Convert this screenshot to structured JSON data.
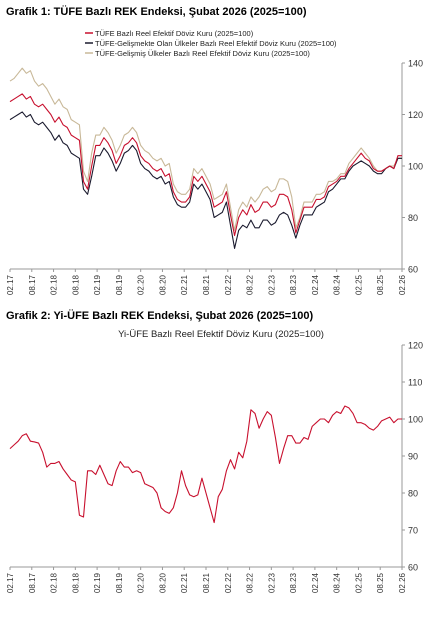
{
  "chart_data": [
    {
      "type": "line",
      "title": "Grafik 1: TÜFE Bazlı REK Endeksi, Şubat 2026 (2025=100)",
      "xlabel": "",
      "ylabel": "",
      "ylim": [
        60,
        140
      ],
      "y_ticks": [
        60,
        80,
        100,
        120,
        140
      ],
      "y_axis_side": "right",
      "grid": false,
      "legend_position": "top",
      "x_tick_labels": [
        "02.17",
        "08.17",
        "02.18",
        "08.18",
        "02.19",
        "08.19",
        "02.20",
        "08.20",
        "02.21",
        "08.21",
        "02.22",
        "08.22",
        "02.23",
        "08.23",
        "02.24",
        "08.24",
        "02.25",
        "08.25",
        "02.26"
      ],
      "series": [
        {
          "name": "TÜFE  Bazlı Reel Efektif Döviz Kuru (2025=100)",
          "color": "#c8102e",
          "values": [
            125,
            126,
            127,
            128,
            126,
            127,
            124,
            123,
            124,
            122,
            120,
            117,
            119,
            116,
            115,
            112,
            111,
            110,
            94,
            91,
            100,
            108,
            108,
            111,
            109,
            106,
            101,
            104,
            108,
            109,
            111,
            109,
            104,
            102,
            101,
            99,
            98,
            99,
            96,
            97,
            90,
            87,
            86,
            86,
            88,
            96,
            94,
            96,
            93,
            90,
            84,
            85,
            86,
            90,
            81,
            73,
            80,
            83,
            81,
            85,
            82,
            83,
            86,
            86,
            84,
            85,
            89,
            89,
            88,
            83,
            74,
            79,
            84,
            84,
            84,
            87,
            87,
            88,
            92,
            93,
            94,
            96,
            96,
            99,
            101,
            103,
            105,
            103,
            102,
            99,
            98,
            98,
            99,
            100,
            99,
            104,
            104
          ]
        },
        {
          "name": "TÜFE-Gelişmekte Olan Ülkeler Bazlı Reel Efektif Döviz Kuru (2025=100)",
          "color": "#1a1a2e",
          "values": [
            118,
            119,
            120,
            121,
            119,
            120,
            117,
            116,
            117,
            115,
            113,
            110,
            112,
            109,
            108,
            105,
            104,
            103,
            91,
            89,
            96,
            104,
            104,
            107,
            105,
            102,
            98,
            101,
            105,
            106,
            108,
            106,
            101,
            99,
            98,
            96,
            95,
            96,
            93,
            94,
            88,
            85,
            84,
            84,
            86,
            93,
            91,
            93,
            90,
            87,
            80,
            81,
            82,
            86,
            77,
            68,
            75,
            77,
            76,
            79,
            76,
            76,
            79,
            79,
            77,
            78,
            81,
            82,
            81,
            77,
            72,
            77,
            81,
            81,
            81,
            84,
            85,
            86,
            90,
            91,
            93,
            95,
            95,
            98,
            100,
            101,
            102,
            101,
            100,
            98,
            97,
            97,
            99,
            100,
            99,
            103,
            103
          ]
        },
        {
          "name": "TÜFE-Gelişmiş Ülkeler Bazlı Reel Efektif Döviz Kuru (2025=100)",
          "color": "#c8b898",
          "values": [
            133,
            134,
            136,
            138,
            136,
            137,
            133,
            131,
            132,
            130,
            127,
            124,
            126,
            123,
            122,
            118,
            117,
            116,
            98,
            94,
            105,
            112,
            112,
            115,
            113,
            110,
            105,
            108,
            112,
            113,
            115,
            113,
            108,
            106,
            105,
            103,
            102,
            103,
            100,
            101,
            93,
            90,
            89,
            89,
            91,
            99,
            97,
            99,
            96,
            93,
            87,
            88,
            89,
            93,
            84,
            75,
            83,
            86,
            84,
            88,
            86,
            88,
            91,
            92,
            90,
            91,
            95,
            95,
            94,
            88,
            76,
            80,
            86,
            86,
            86,
            89,
            89,
            90,
            94,
            94,
            95,
            97,
            97,
            101,
            103,
            105,
            107,
            105,
            103,
            100,
            98,
            98,
            99,
            100,
            100,
            103,
            103
          ]
        }
      ]
    },
    {
      "type": "line",
      "title": "Grafik 2: Yi-ÜFE Bazlı REK Endeksi, Şubat 2026 (2025=100)",
      "subtitle": "Yi-ÜFE Bazlı Reel Efektif Döviz Kuru (2025=100)",
      "xlabel": "",
      "ylabel": "",
      "ylim": [
        60,
        120
      ],
      "y_ticks": [
        60,
        70,
        80,
        90,
        100,
        110,
        120
      ],
      "y_axis_side": "right",
      "grid": false,
      "x_tick_labels": [
        "02.17",
        "08.17",
        "02.18",
        "08.18",
        "02.19",
        "08.19",
        "02.20",
        "08.20",
        "02.21",
        "08.21",
        "02.22",
        "08.22",
        "02.23",
        "08.23",
        "02.24",
        "08.24",
        "02.25",
        "08.25",
        "02.26"
      ],
      "series": [
        {
          "name": "",
          "color": "#c8102e",
          "values": [
            92,
            93,
            94,
            95.5,
            96,
            94,
            93.8,
            93.5,
            91,
            87,
            88,
            88,
            88.5,
            86.5,
            85,
            83.5,
            83,
            74,
            73.5,
            86,
            86,
            85,
            87.5,
            85,
            82.5,
            82,
            86,
            88.5,
            87,
            87,
            85.5,
            86,
            85.5,
            82.5,
            82,
            81.5,
            80,
            76,
            75,
            74.5,
            76,
            80,
            86,
            82,
            79.5,
            79,
            79.5,
            84,
            80,
            76,
            72,
            79,
            81,
            86,
            89,
            86.5,
            91,
            89.5,
            94,
            102.5,
            101.5,
            97.5,
            100,
            102,
            101,
            95,
            88,
            92,
            95.5,
            95.5,
            93.5,
            93.5,
            95,
            94.5,
            98,
            99,
            100,
            100,
            99,
            101,
            102,
            101.5,
            103.5,
            103,
            101.5,
            99,
            99,
            98.5,
            97.5,
            97,
            98,
            99.5,
            100,
            100.5,
            99,
            100,
            100
          ]
        }
      ]
    }
  ]
}
